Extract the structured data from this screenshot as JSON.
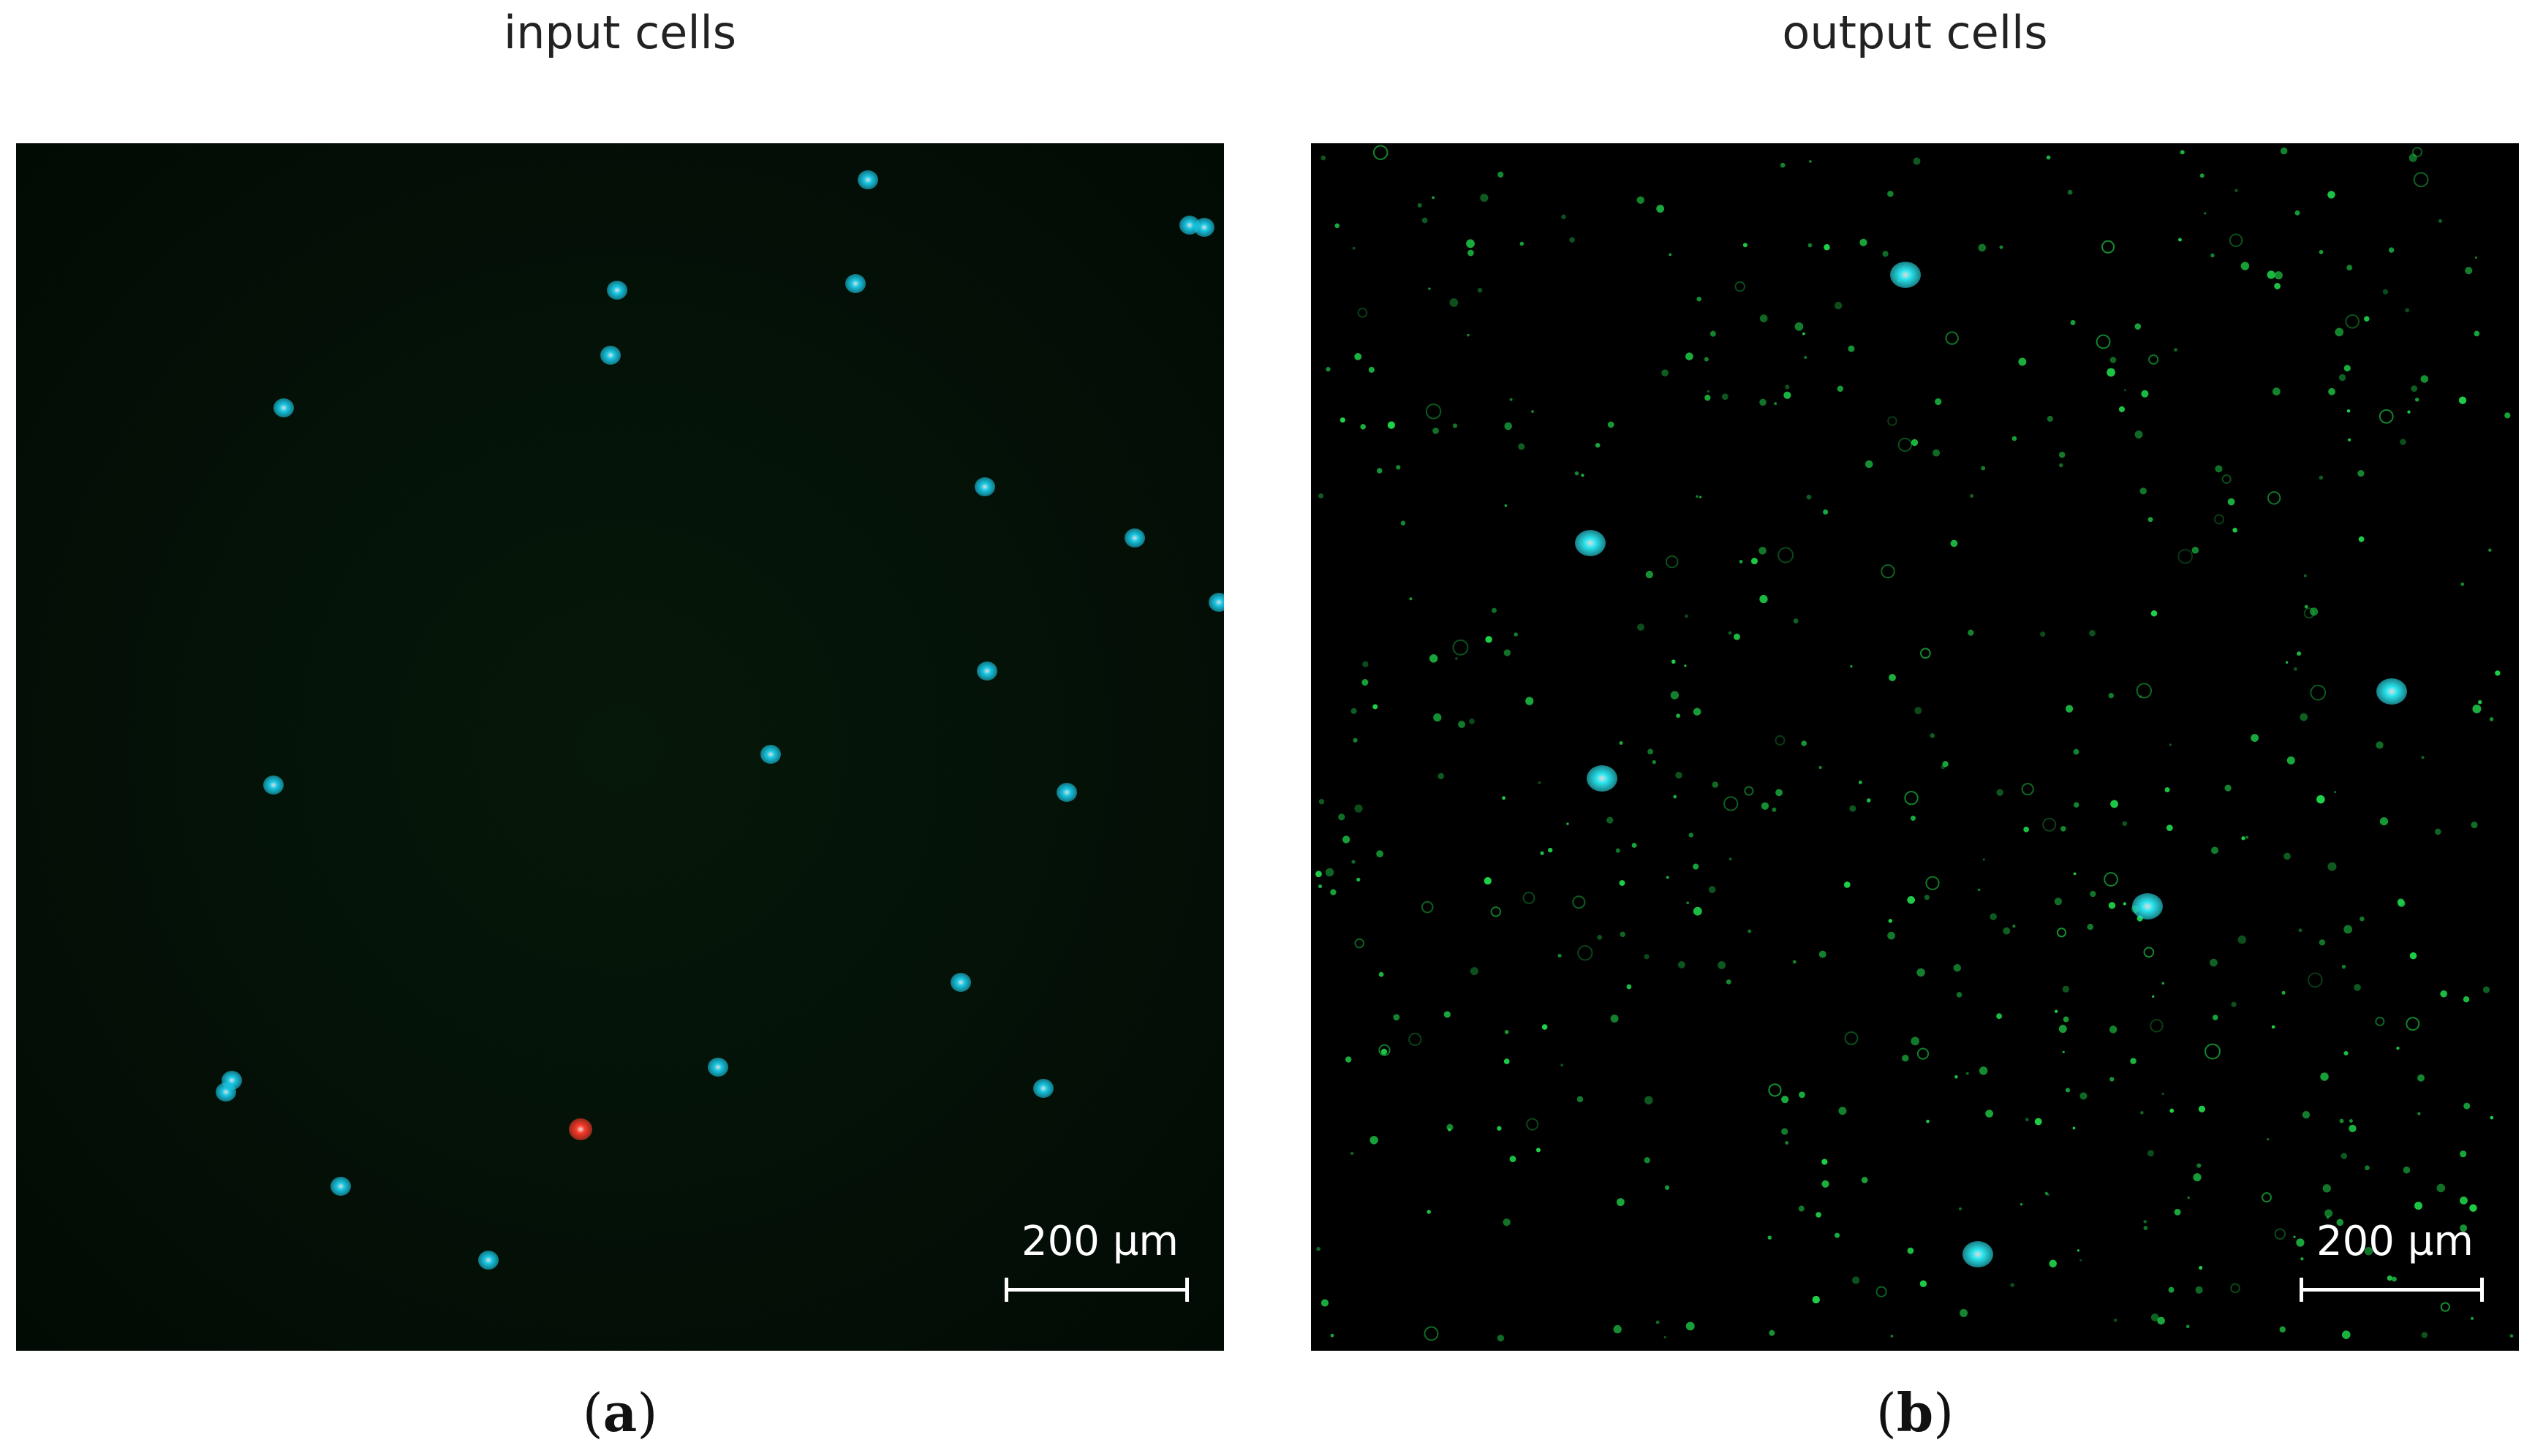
{
  "panels": [
    {
      "title": "input cells",
      "caption_letter": "a",
      "scalebar_label": "200 µm",
      "cell_colors": {
        "nucleus": "#19c8e6",
        "red_cell": "#ff3a2a"
      }
    },
    {
      "title": "output cells",
      "caption_letter": "b",
      "scalebar_label": "200 µm",
      "cell_colors": {
        "nucleus": "#2ae6f0",
        "bead": "#1fd34a"
      }
    }
  ]
}
